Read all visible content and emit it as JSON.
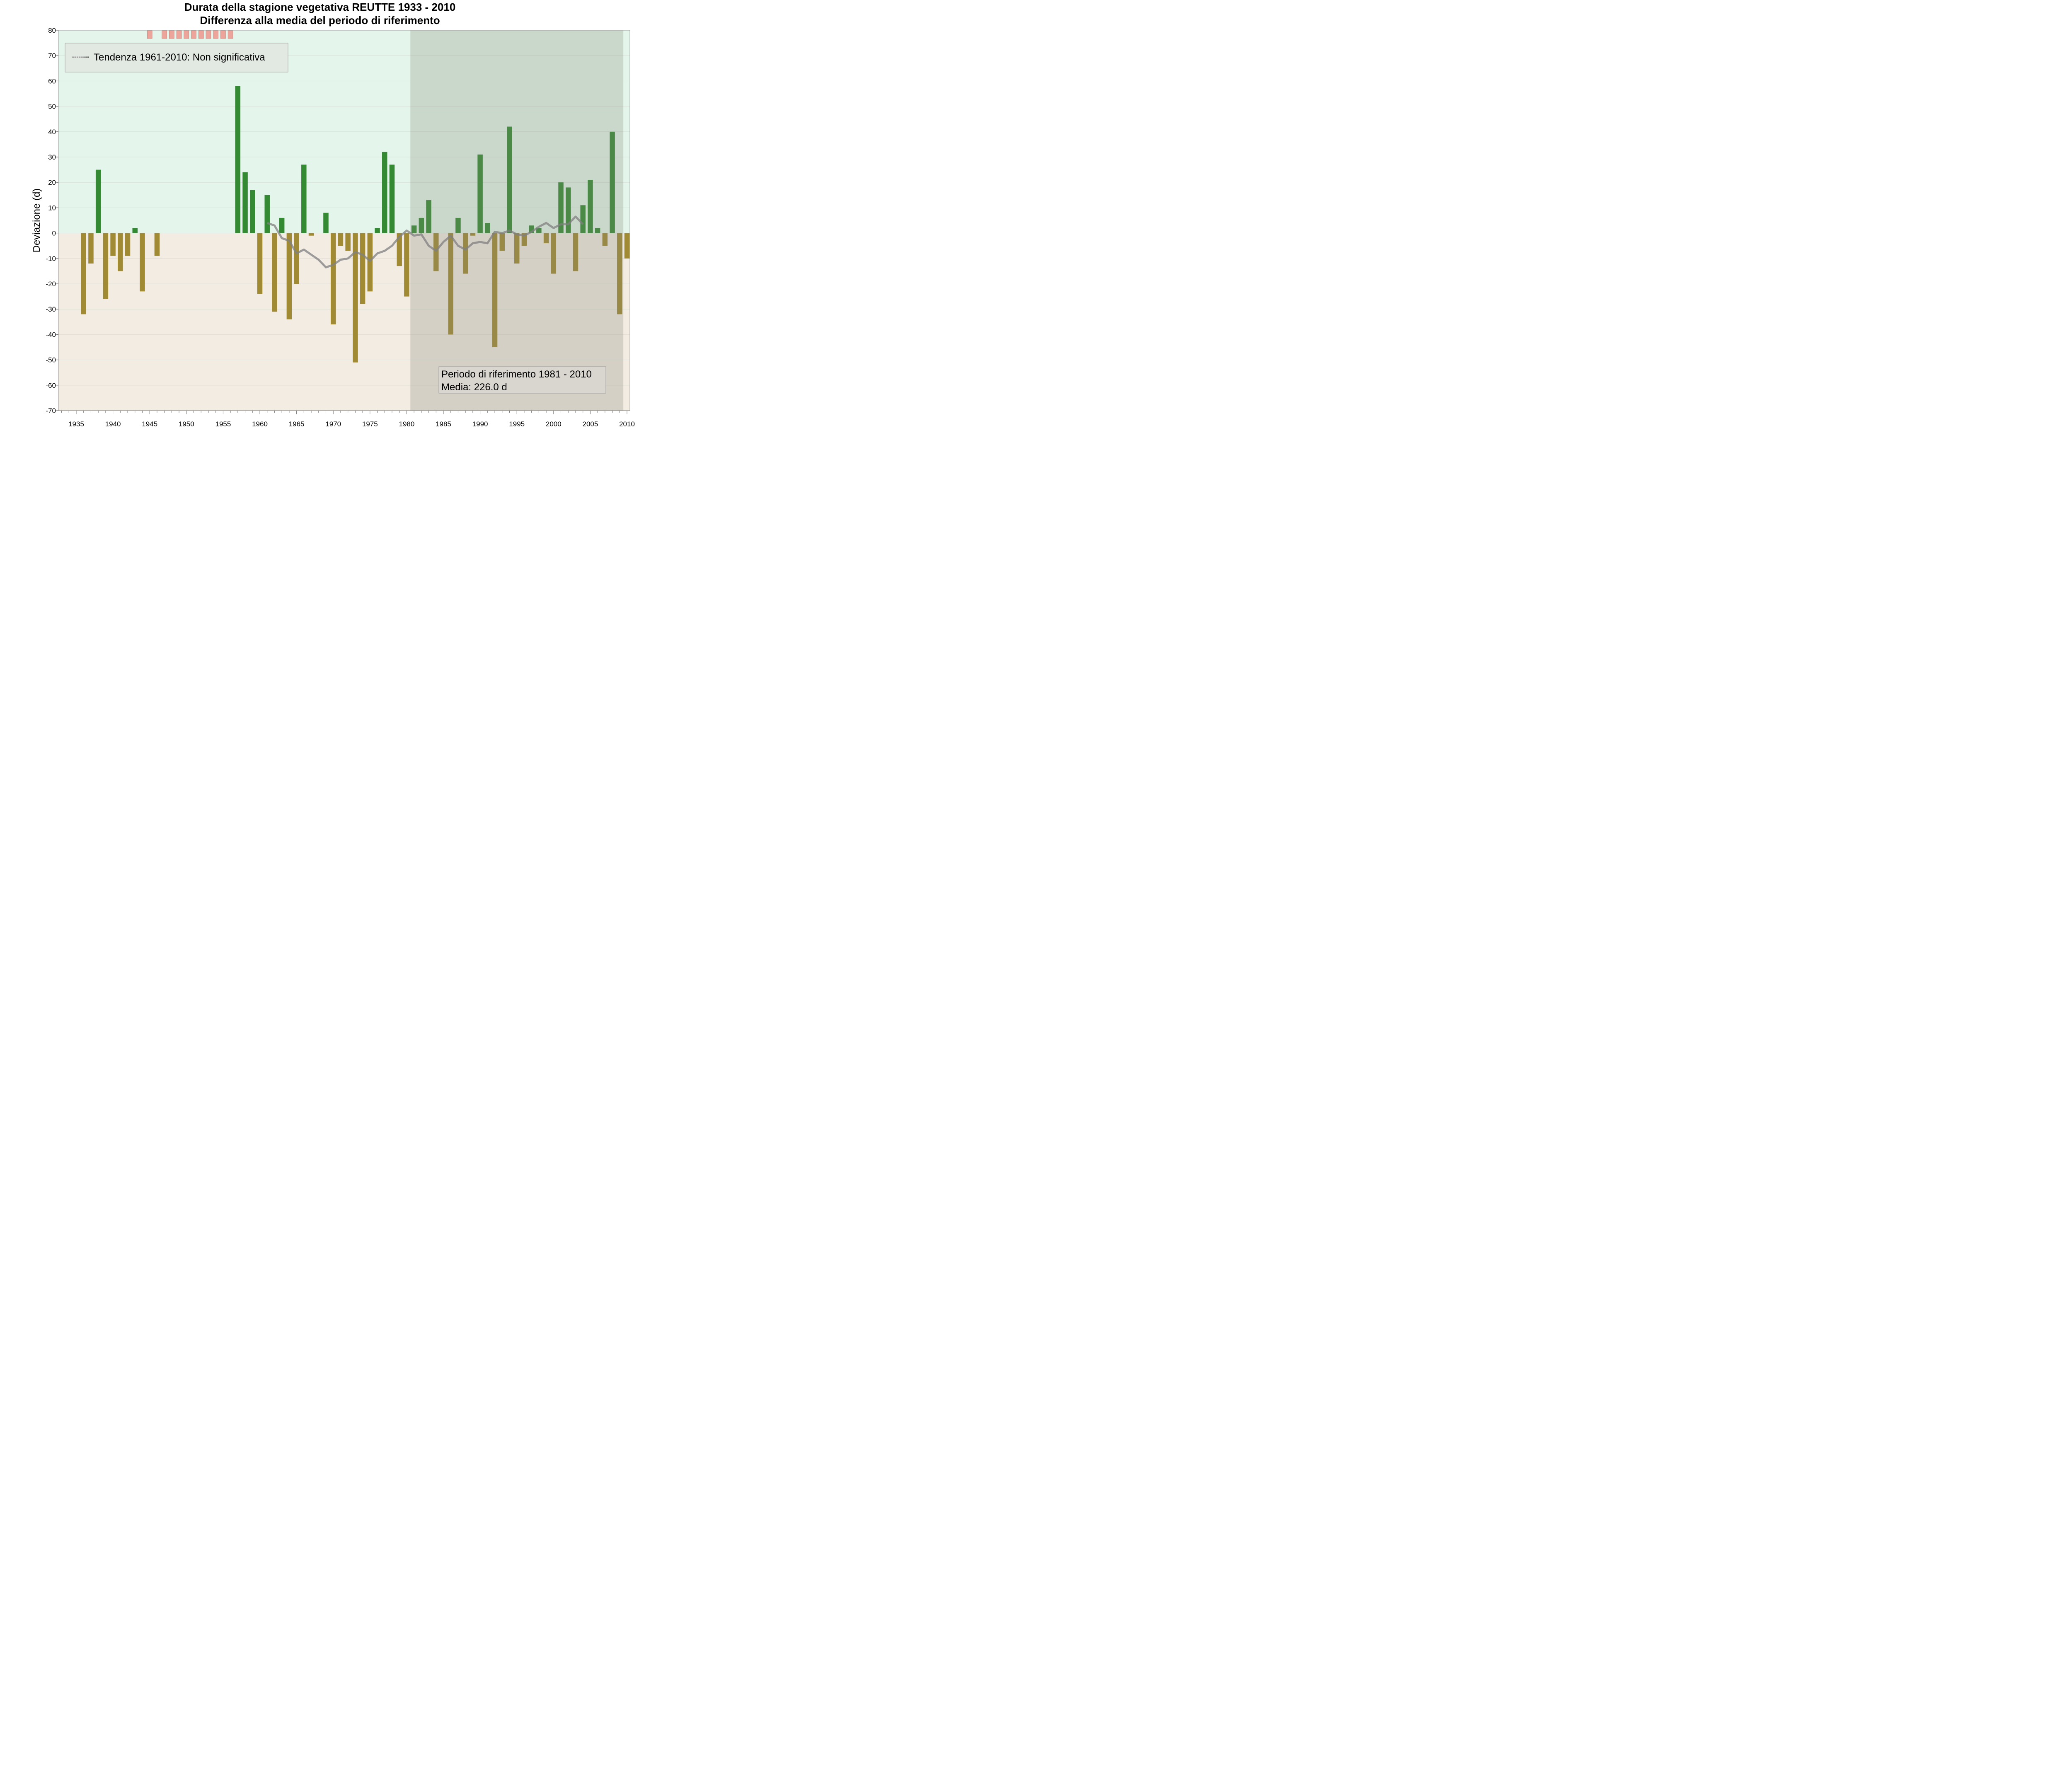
{
  "chart_data": {
    "type": "bar",
    "title": "Durata della stagione vegetativa REUTTE 1933 - 2010",
    "subtitle": "Differenza alla media del periodo di riferimento",
    "ylabel": "Deviazione (d)",
    "xlabel": "",
    "xlim": [
      1933,
      2010
    ],
    "ylim": [
      -70,
      80
    ],
    "xticks": [
      1935,
      1940,
      1945,
      1950,
      1955,
      1960,
      1965,
      1970,
      1975,
      1980,
      1985,
      1990,
      1995,
      2000,
      2005,
      2010
    ],
    "yticks": [
      -70,
      -60,
      -50,
      -40,
      -30,
      -20,
      -10,
      0,
      10,
      20,
      30,
      40,
      50,
      60,
      70,
      80
    ],
    "grid": true,
    "colors": {
      "positive": "#338a33",
      "negative": "#a08a33",
      "positive_background": "#e4f5eb",
      "negative_background": "#f3ece3",
      "reference_shade": "#8a8a7a",
      "trend_line": "#808080",
      "missing_marker": "#eda49a"
    },
    "series": [
      {
        "x": [
          1936,
          1937,
          1938,
          1939,
          1940,
          1941,
          1942,
          1943,
          1944,
          1946,
          1957,
          1958,
          1959,
          1960,
          1961,
          1962,
          1963,
          1964,
          1965,
          1966,
          1967,
          1969,
          1970,
          1971,
          1972,
          1973,
          1974,
          1975,
          1976,
          1977,
          1978,
          1979,
          1980,
          1981,
          1982,
          1983,
          1984,
          1986,
          1987,
          1988,
          1989,
          1990,
          1991,
          1992,
          1993,
          1994,
          1995,
          1996,
          1997,
          1998,
          1999,
          2000,
          2001,
          2002,
          2003,
          2004,
          2005,
          2006,
          2007,
          2008,
          2009,
          2010
        ],
        "values": [
          -32,
          -12,
          25,
          -26,
          -9,
          -15,
          -9,
          2,
          -23,
          -9,
          58,
          24,
          17,
          -24,
          15,
          -31,
          6,
          -34,
          -20,
          27,
          -1,
          8,
          -36,
          -5,
          -7,
          -51,
          -28,
          -23,
          2,
          32,
          27,
          -13,
          -25,
          3,
          6,
          13,
          -15,
          -40,
          6,
          -16,
          -1,
          31,
          4,
          -45,
          -7,
          42,
          -12,
          -5,
          3,
          2,
          -4,
          -16,
          20,
          18,
          -15,
          11,
          21,
          2,
          -5,
          40,
          -32,
          -10
        ]
      }
    ],
    "trend": {
      "x": [
        1961,
        1962,
        1963,
        1964,
        1965,
        1966,
        1967,
        1968,
        1969,
        1970,
        1971,
        1972,
        1973,
        1974,
        1975,
        1976,
        1977,
        1978,
        1979,
        1980,
        1981,
        1982,
        1983,
        1984,
        1985,
        1986,
        1987,
        1988,
        1989,
        1990,
        1991,
        1992,
        1993,
        1994,
        1995,
        1996,
        1997,
        1998,
        1999,
        2000,
        2001,
        2002,
        2003,
        2004
      ],
      "values": [
        4,
        3,
        -2,
        -3,
        -8,
        -6.5,
        -8.5,
        -10.5,
        -13.5,
        -12.5,
        -10.5,
        -10,
        -7.5,
        -8.5,
        -11,
        -8,
        -7,
        -5,
        -1.5,
        1,
        -1,
        -0.5,
        -5,
        -7,
        -3.5,
        -1,
        -5,
        -6.5,
        -4,
        -3.5,
        -4,
        0.5,
        0,
        1,
        -0.5,
        -1,
        0.5,
        2.5,
        4,
        2,
        3.5,
        3.5,
        6.5,
        3.5
      ]
    },
    "missing_years": [
      1945,
      1947,
      1948,
      1949,
      1950,
      1951,
      1952,
      1953,
      1954,
      1955,
      1956
    ],
    "reference_period": [
      1981,
      2010
    ],
    "legend": {
      "position": "top-left",
      "label": "Tendenza 1961-2010: Non significativa"
    },
    "annotation": {
      "position": "bottom-right",
      "lines": [
        "Periodo di riferimento 1981 - 2010",
        "Media: 226.0 d"
      ]
    }
  }
}
